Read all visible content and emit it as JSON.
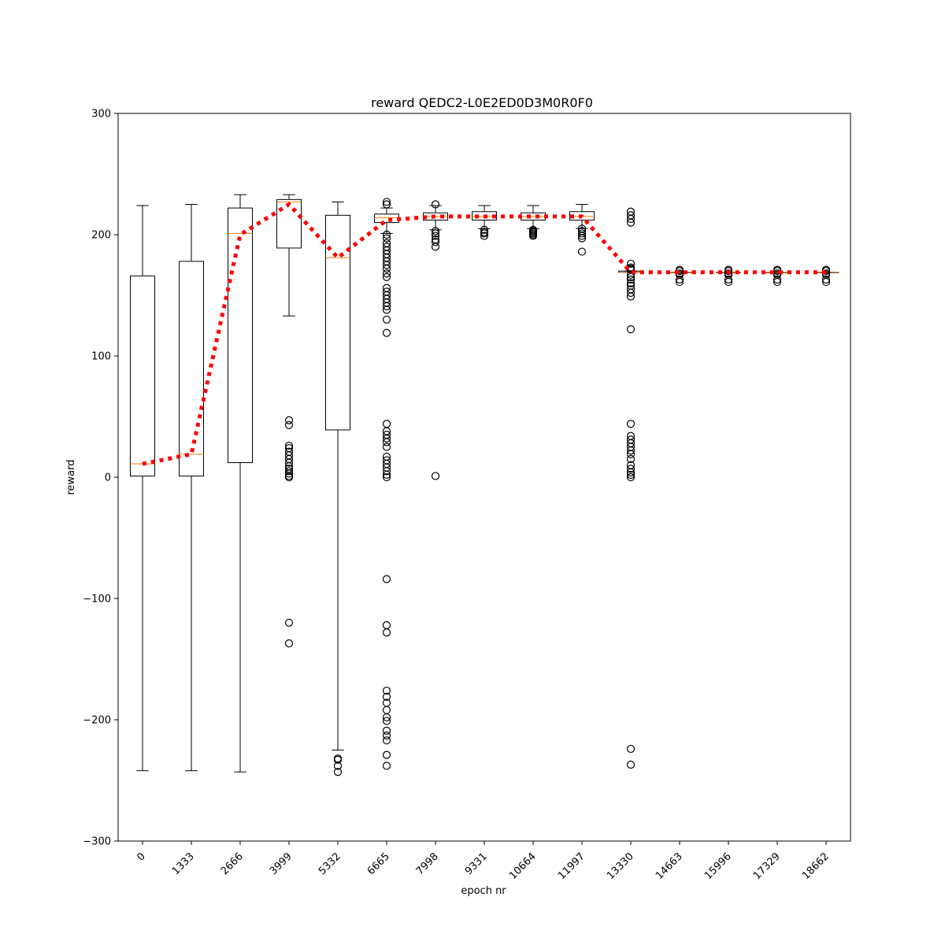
{
  "chart_data": {
    "type": "box",
    "title": "reward QEDC2-L0E2ED0D3M0R0F0",
    "xlabel": "epoch nr",
    "ylabel": "reward",
    "ylim": [
      -300,
      300
    ],
    "yticks": [
      -300,
      -200,
      -100,
      0,
      100,
      200,
      300
    ],
    "ytick_labels": [
      "−300",
      "−200",
      "−100",
      "0",
      "100",
      "200",
      "300"
    ],
    "categories": [
      "0",
      "1333",
      "2666",
      "3999",
      "5332",
      "6665",
      "7998",
      "9331",
      "10664",
      "11997",
      "13330",
      "14663",
      "15996",
      "17329",
      "18662"
    ],
    "boxes": [
      {
        "whislo": -242,
        "q1": 1,
        "med": 11,
        "q3": 166,
        "whishi": 224,
        "fliers": []
      },
      {
        "whislo": -242,
        "q1": 1,
        "med": 19,
        "q3": 178,
        "whishi": 225,
        "fliers": []
      },
      {
        "whislo": -243,
        "q1": 12,
        "med": 201,
        "q3": 222,
        "whishi": 233,
        "fliers": []
      },
      {
        "whislo": 133,
        "q1": 189,
        "med": 227,
        "q3": 229,
        "whishi": 233,
        "fliers": [
          47,
          43,
          26,
          24,
          21,
          18,
          15,
          12,
          9,
          7,
          5,
          3,
          1,
          0,
          -120,
          -137
        ]
      },
      {
        "whislo": -225,
        "q1": 39,
        "med": 181,
        "q3": 216,
        "whishi": 227,
        "fliers": [
          -232,
          -233,
          -238,
          -243
        ]
      },
      {
        "whislo": 201,
        "q1": 210,
        "med": 214,
        "q3": 217,
        "whishi": 222,
        "fliers": [
          227,
          225,
          200,
          197,
          193,
          190,
          187,
          184,
          181,
          178,
          175,
          172,
          168,
          165,
          156,
          153,
          150,
          147,
          144,
          141,
          138,
          130,
          119,
          44,
          38,
          35,
          32,
          29,
          25,
          17,
          14,
          11,
          8,
          5,
          2,
          0,
          -84,
          -122,
          -128,
          -176,
          -181,
          -186,
          -192,
          -198,
          -201,
          -209,
          -213,
          -217,
          -229,
          -238
        ]
      },
      {
        "whislo": 204,
        "q1": 212,
        "med": 215,
        "q3": 218,
        "whishi": 224,
        "fliers": [
          225,
          203,
          201,
          199,
          196,
          194,
          190,
          1
        ]
      },
      {
        "whislo": 205,
        "q1": 212,
        "med": 215,
        "q3": 219,
        "whishi": 224,
        "fliers": [
          204,
          202,
          201,
          199
        ]
      },
      {
        "whislo": 205,
        "q1": 212,
        "med": 215,
        "q3": 218,
        "whishi": 224,
        "fliers": [
          204,
          203,
          202,
          201,
          200,
          199
        ]
      },
      {
        "whislo": 205,
        "q1": 212,
        "med": 215,
        "q3": 219,
        "whishi": 225,
        "fliers": [
          205,
          203,
          201,
          199,
          197,
          186
        ]
      },
      {
        "whislo": 169,
        "q1": 169,
        "med": 169,
        "q3": 170,
        "whishi": 170,
        "fliers": [
          219,
          216,
          213,
          210,
          176,
          173,
          172,
          171,
          167,
          165,
          163,
          160,
          158,
          155,
          152,
          149,
          122,
          44,
          34,
          31,
          28,
          25,
          22,
          19,
          15,
          10,
          7,
          4,
          2,
          0,
          -224,
          -237
        ]
      },
      {
        "whislo": 169,
        "q1": 169,
        "med": 169,
        "q3": 169,
        "whishi": 169,
        "fliers": [
          171,
          170,
          168,
          167,
          163,
          161
        ]
      },
      {
        "whislo": 169,
        "q1": 169,
        "med": 169,
        "q3": 169,
        "whishi": 169,
        "fliers": [
          171,
          170,
          168,
          167,
          163,
          161
        ]
      },
      {
        "whislo": 169,
        "q1": 169,
        "med": 169,
        "q3": 169,
        "whishi": 169,
        "fliers": [
          171,
          170,
          168,
          167,
          163,
          161
        ]
      },
      {
        "whislo": 169,
        "q1": 169,
        "med": 169,
        "q3": 169,
        "whishi": 169,
        "fliers": [
          171,
          170,
          168,
          167,
          163,
          161
        ]
      }
    ],
    "mean_line": [
      11,
      19,
      200,
      225,
      181,
      212,
      215,
      215,
      215,
      215,
      169,
      169,
      169,
      169,
      169
    ],
    "colors": {
      "box": "#000000",
      "median": "#ff7f0e",
      "mean_line": "#ff0000",
      "flier": "#000000"
    },
    "grid": false,
    "legend": "none"
  }
}
